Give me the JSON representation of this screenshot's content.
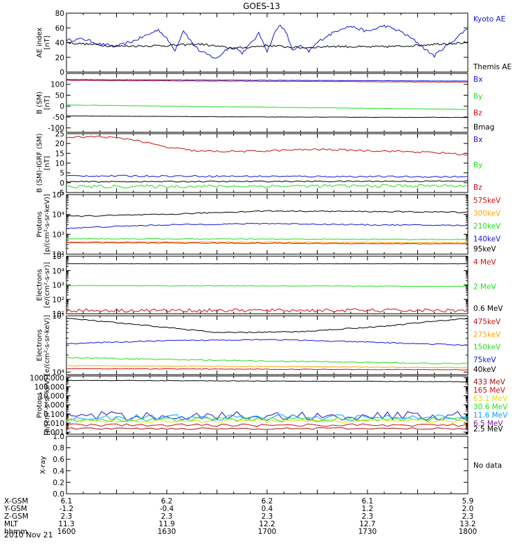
{
  "title": "GOES-13",
  "date_label": "2010 Nov 21",
  "colors": {
    "black": "#000000",
    "blue": "#1515d6",
    "green": "#22dd22",
    "red": "#c81010",
    "orange": "#ffa500",
    "yellow": "#e0e000",
    "cyan": "#00a5ff",
    "purple": "#7a1a8a",
    "darkred": "#a01010",
    "brown": "#a05a00"
  },
  "xaxis": {
    "start_min": 0,
    "end_min": 240
  },
  "ephemeris": {
    "row_labels": [
      "X-GSM",
      "Y-GSM",
      "Z-GSM",
      "MLT",
      "hhmm"
    ],
    "columns": [
      [
        "6.1",
        "-1.2",
        "2.3",
        "11.3",
        "1600"
      ],
      [
        "6.2",
        "-0.4",
        "2.3",
        "11.9",
        "1630"
      ],
      [
        "6.2",
        "0.4",
        "2.3",
        "12.2",
        "1700"
      ],
      [
        "6.1",
        "1.2",
        "2.3",
        "12.7",
        "1730"
      ],
      [
        "5.9",
        "2.0",
        "2.3",
        "13.2",
        "1800"
      ]
    ]
  },
  "panels": [
    {
      "id": "ae",
      "ylabel": [
        "AE index",
        "[nT]"
      ],
      "yscale": "linear",
      "ylim": [
        0,
        80
      ],
      "ticks": [
        0,
        20,
        40,
        60,
        80
      ],
      "tick_labels": [
        "0",
        "20",
        "40",
        "60",
        "80"
      ],
      "legend": [
        {
          "text": "Kyoto AE",
          "color": "#1515d6"
        },
        {
          "text": "Themis AE",
          "color": "#000000"
        }
      ],
      "series": [
        {
          "color": "#1515d6",
          "kind": "ae_kyoto"
        },
        {
          "color": "#000000",
          "kind": "ae_themis"
        }
      ]
    },
    {
      "id": "b",
      "ylabel": [
        "B (SM)",
        "[nT]"
      ],
      "yscale": "linear",
      "ylim": [
        -120,
        150
      ],
      "ticks": [
        -100,
        -50,
        0,
        50,
        100
      ],
      "tick_labels": [
        "-100",
        "-50",
        "0",
        "50",
        "100"
      ],
      "legend": [
        {
          "text": "Bx",
          "color": "#1515d6"
        },
        {
          "text": "By",
          "color": "#22dd22"
        },
        {
          "text": "Bz",
          "color": "#c81010"
        },
        {
          "text": "Bmag",
          "color": "#000000"
        }
      ],
      "series": [
        {
          "color": "#c81010",
          "kind": "trend",
          "points": [
            [
              0,
              118
            ],
            [
              240,
              110
            ]
          ],
          "noise": 1
        },
        {
          "color": "#1515d6",
          "kind": "trend",
          "points": [
            [
              0,
              122
            ],
            [
              240,
              115
            ]
          ],
          "noise": 0.6
        },
        {
          "color": "#22dd22",
          "kind": "trend",
          "points": [
            [
              0,
              5
            ],
            [
              120,
              -5
            ],
            [
              240,
              -15
            ]
          ],
          "noise": 0.8
        },
        {
          "color": "#000000",
          "kind": "trend",
          "points": [
            [
              0,
              -45
            ],
            [
              120,
              -50
            ],
            [
              240,
              -52
            ]
          ],
          "noise": 0.6
        }
      ]
    },
    {
      "id": "bdiff",
      "ylabel": [
        "B (SM)-IGRF (SM)",
        "[nT]"
      ],
      "yscale": "linear",
      "ylim": [
        -5,
        25
      ],
      "ticks": [
        -5,
        0,
        5,
        10,
        15,
        20,
        25
      ],
      "tick_labels": [
        "-5",
        "0",
        "5",
        "10",
        "15",
        "20",
        "25"
      ],
      "legend": [
        {
          "text": "Bx",
          "color": "#1515d6"
        },
        {
          "text": "By",
          "color": "#22dd22"
        },
        {
          "text": "Bz",
          "color": "#c81010"
        }
      ],
      "series": [
        {
          "color": "#c81010",
          "kind": "trend",
          "points": [
            [
              0,
              23
            ],
            [
              20,
              23.5
            ],
            [
              40,
              22
            ],
            [
              60,
              18
            ],
            [
              80,
              16
            ],
            [
              110,
              16
            ],
            [
              150,
              17
            ],
            [
              200,
              16
            ],
            [
              230,
              15
            ],
            [
              240,
              14
            ]
          ],
          "noise": 0.5
        },
        {
          "color": "#1515d6",
          "kind": "trend",
          "points": [
            [
              0,
              3.5
            ],
            [
              240,
              3
            ]
          ],
          "noise": 0.4
        },
        {
          "color": "#000000",
          "kind": "trend",
          "points": [
            [
              0,
              0.5
            ],
            [
              240,
              0.8
            ]
          ],
          "noise": 0.3
        },
        {
          "color": "#22dd22",
          "kind": "trend",
          "points": [
            [
              0,
              -2
            ],
            [
              240,
              -1.5
            ]
          ],
          "noise": 0.8
        }
      ]
    },
    {
      "id": "protons",
      "ylabel": [
        "Protons",
        "[p/(cm²-s-sr-keV)]"
      ],
      "yscale": "log",
      "ylim": [
        100,
        100000
      ],
      "ticks": [
        100,
        1000,
        10000,
        100000
      ],
      "tick_labels": [
        "10²",
        "10³",
        "10⁴",
        "10⁵"
      ],
      "legend": [
        {
          "text": "575keV",
          "color": "#c81010"
        },
        {
          "text": "300keV",
          "color": "#ffa500"
        },
        {
          "text": "210keV",
          "color": "#22dd22"
        },
        {
          "text": "140keV",
          "color": "#1515d6"
        },
        {
          "text": "95keV",
          "color": "#000000"
        }
      ],
      "series": [
        {
          "color": "#000000",
          "kind": "trend",
          "points": [
            [
              0,
              8000
            ],
            [
              60,
              10000
            ],
            [
              120,
              15000
            ],
            [
              180,
              14000
            ],
            [
              240,
              13000
            ]
          ],
          "noise": 0.03
        },
        {
          "color": "#1515d6",
          "kind": "trend",
          "points": [
            [
              0,
              2000
            ],
            [
              60,
              3000
            ],
            [
              120,
              3500
            ],
            [
              180,
              3000
            ],
            [
              240,
              2800
            ]
          ],
          "noise": 0.03
        },
        {
          "color": "#22dd22",
          "kind": "trend",
          "points": [
            [
              0,
              600
            ],
            [
              240,
              550
            ]
          ],
          "noise": 0.02
        },
        {
          "color": "#ffa500",
          "kind": "trend",
          "points": [
            [
              0,
              420
            ],
            [
              240,
              380
            ]
          ],
          "noise": 0.02
        },
        {
          "color": "#c81010",
          "kind": "trend",
          "points": [
            [
              0,
              380
            ],
            [
              240,
              330
            ]
          ],
          "noise": 0.02
        }
      ]
    },
    {
      "id": "electrons_hi",
      "ylabel": [
        "Electrons",
        "[e/(cm²-s-sr)]"
      ],
      "yscale": "log",
      "ylim": [
        10,
        100000
      ],
      "ticks": [
        10,
        100,
        1000,
        10000,
        100000
      ],
      "tick_labels": [
        "10¹",
        "10²",
        "10³",
        "10⁴",
        "10⁵"
      ],
      "legend": [
        {
          "text": "4 MeV",
          "color": "#c81010"
        },
        {
          "text": "2 MeV",
          "color": "#22dd22"
        },
        {
          "text": "0.6 MeV",
          "color": "#000000"
        }
      ],
      "series": [
        {
          "color": "#000000",
          "kind": "trend",
          "points": [
            [
              0,
              30000
            ],
            [
              240,
              30000
            ]
          ],
          "noise": 0.005
        },
        {
          "color": "#22dd22",
          "kind": "trend",
          "points": [
            [
              0,
              900
            ],
            [
              240,
              800
            ]
          ],
          "noise": 0.02
        },
        {
          "color": "#c81010",
          "kind": "trend",
          "points": [
            [
              0,
              17
            ],
            [
              240,
              17
            ]
          ],
          "noise": 0.12
        }
      ]
    },
    {
      "id": "electrons_lo",
      "ylabel": [
        "Electrons",
        "[e/(cm²-s-sr-keV)]"
      ],
      "yscale": "log",
      "ylim": [
        9000,
        100000
      ],
      "ticks": [
        10000,
        100000
      ],
      "tick_labels": [
        "10⁴",
        "10⁵"
      ],
      "legend": [
        {
          "text": "475keV",
          "color": "#c81010"
        },
        {
          "text": "275keV",
          "color": "#ffa500"
        },
        {
          "text": "150keV",
          "color": "#22dd22"
        },
        {
          "text": "75keV",
          "color": "#1515d6"
        },
        {
          "text": "40keV",
          "color": "#000000"
        }
      ],
      "series": [
        {
          "color": "#000000",
          "kind": "trend",
          "points": [
            [
              0,
              90000
            ],
            [
              40,
              70000
            ],
            [
              90,
              50000
            ],
            [
              140,
              52000
            ],
            [
              190,
              65000
            ],
            [
              240,
              90000
            ]
          ],
          "noise": 0.01
        },
        {
          "color": "#1515d6",
          "kind": "trend",
          "points": [
            [
              0,
              32000
            ],
            [
              60,
              36000
            ],
            [
              120,
              38000
            ],
            [
              180,
              34000
            ],
            [
              240,
              30000
            ]
          ],
          "noise": 0.01
        },
        {
          "color": "#22dd22",
          "kind": "trend",
          "points": [
            [
              0,
              18000
            ],
            [
              100,
              16000
            ],
            [
              240,
              14000
            ]
          ],
          "noise": 0.01
        },
        {
          "color": "#ffa500",
          "kind": "trend",
          "points": [
            [
              0,
              13000
            ],
            [
              240,
              12000
            ]
          ],
          "noise": 0.005
        },
        {
          "color": "#c81010",
          "kind": "trend",
          "points": [
            [
              0,
              11500
            ],
            [
              240,
              11000
            ]
          ],
          "noise": 0.005
        }
      ]
    },
    {
      "id": "hep",
      "ylabel": [
        "Protons",
        "[p/(cm²-s-sr-keV)]"
      ],
      "yscale": "log",
      "ylim": [
        0.0006,
        1500
      ],
      "ticks": [
        0.001,
        0.01,
        0.1,
        1,
        10,
        100,
        1000
      ],
      "tick_labels": [
        "0.001",
        "0.010",
        "0.100",
        "1.000",
        "10.000",
        "100.000",
        "1000.000"
      ],
      "legend": [
        {
          "text": "433 MeV",
          "color": "#a01010"
        },
        {
          "text": "165 MeV",
          "color": "#c81010"
        },
        {
          "text": "63.1 MeV",
          "color": "#e0e000"
        },
        {
          "text": "30.6 MeV",
          "color": "#22dd22"
        },
        {
          "text": "11.6 MeV",
          "color": "#00a5ff"
        },
        {
          "text": "6.5 MeV",
          "color": "#7a1a8a"
        },
        {
          "text": "2.5 MeV",
          "color": "#000000"
        }
      ],
      "series": [
        {
          "color": "#000000",
          "kind": "trend",
          "points": [
            [
              0,
              500
            ],
            [
              240,
              350
            ]
          ],
          "noise": 0.03
        },
        {
          "color": "#1515d6",
          "kind": "spiky",
          "points": [
            [
              0,
              0.06
            ],
            [
              240,
              0.06
            ]
          ],
          "noise": 0.5
        },
        {
          "color": "#00a5ff",
          "kind": "spiky",
          "points": [
            [
              0,
              0.04
            ],
            [
              240,
              0.04
            ]
          ],
          "noise": 0.35
        },
        {
          "color": "#22dd22",
          "kind": "spiky",
          "points": [
            [
              0,
              0.025
            ],
            [
              240,
              0.025
            ]
          ],
          "noise": 0.25
        },
        {
          "color": "#e0e000",
          "kind": "spiky",
          "points": [
            [
              0,
              0.018
            ],
            [
              240,
              0.018
            ]
          ],
          "noise": 0.2
        },
        {
          "color": "#c81010",
          "kind": "spiky",
          "points": [
            [
              0,
              0.006
            ],
            [
              240,
              0.006
            ]
          ],
          "noise": 0.15
        },
        {
          "color": "#a01010",
          "kind": "spiky",
          "points": [
            [
              0,
              0.0025
            ],
            [
              240,
              0.0025
            ]
          ],
          "noise": 0.1
        }
      ]
    },
    {
      "id": "xray",
      "ylabel": [
        "X-ray",
        ""
      ],
      "yscale": "linear",
      "ylim": [
        0,
        1
      ],
      "ticks": [
        0,
        0.2,
        0.4,
        0.6,
        0.8,
        1.0
      ],
      "tick_labels": [
        "0.0",
        "0.2",
        "0.4",
        "0.6",
        "0.8",
        "1.0"
      ],
      "legend": [
        {
          "text": "No data",
          "color": "#000000"
        }
      ],
      "series": []
    }
  ]
}
